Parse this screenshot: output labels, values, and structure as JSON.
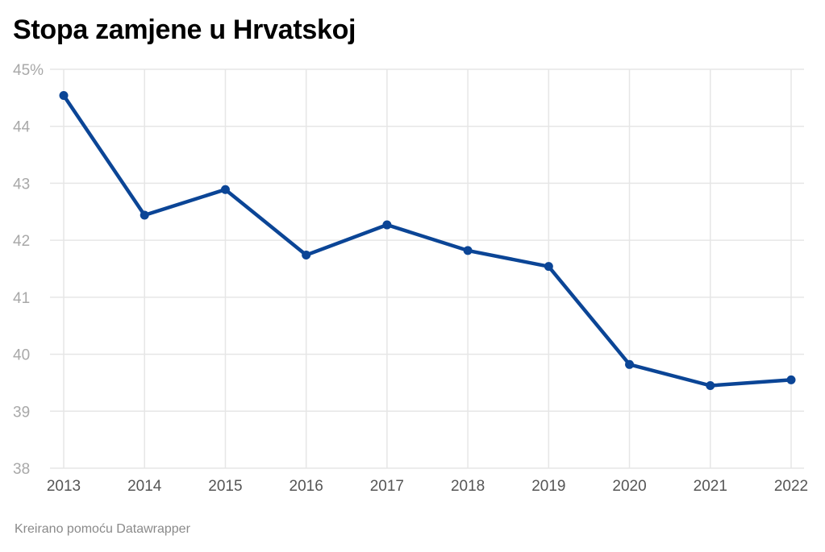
{
  "title": "Stopa zamjene u Hrvatskoj",
  "footer": "Kreirano pomoću Datawrapper",
  "colors": {
    "line": "#0b4596",
    "grid": "#e6e6e6",
    "y_tick": "#a8a8a8",
    "x_tick": "#555555"
  },
  "chart_data": {
    "type": "line",
    "title": "Stopa zamjene u Hrvatskoj",
    "xlabel": "",
    "ylabel": "",
    "x": [
      "2013",
      "2014",
      "2015",
      "2016",
      "2017",
      "2018",
      "2019",
      "2020",
      "2021",
      "2022"
    ],
    "series": [
      {
        "values": [
          44.54,
          42.44,
          42.89,
          41.74,
          42.27,
          41.82,
          41.54,
          39.82,
          39.45,
          39.55
        ]
      }
    ],
    "ylim": [
      38,
      45
    ],
    "y_ticks": [
      "38",
      "39",
      "40",
      "41",
      "42",
      "43",
      "44",
      "45%"
    ],
    "grid": true,
    "legend": "none"
  }
}
